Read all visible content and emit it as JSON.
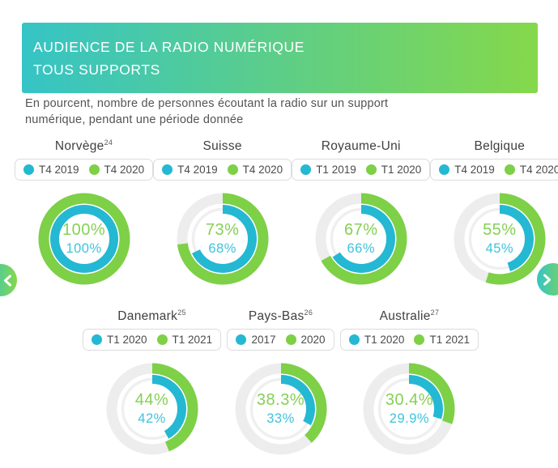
{
  "header": {
    "title_line1": "AUDIENCE DE LA RADIO NUMÉRIQUE",
    "title_line2": "TOUS SUPPORTS",
    "subtitle_line1": "En pourcent, nombre de personnes écoutant la radio sur un support",
    "subtitle_line2": "numérique, pendant une période donnée"
  },
  "colors": {
    "teal": "#24b8d3",
    "green": "#7ed047",
    "teal_text": "#3ec3dc",
    "green_text": "#86d055",
    "track_outer": "#ededed",
    "track_inner": "#efefef",
    "header_gradient_start": "#35c4c6",
    "header_gradient_end": "#85d84a"
  },
  "nav": {
    "prev_icon": "chevron-left",
    "next_icon": "chevron-right"
  },
  "chart_data": {
    "type": "donut",
    "title": "AUDIENCE DE LA RADIO NUMÉRIQUE TOUS SUPPORTS",
    "subtitle": "En pourcent, nombre de personnes écoutant la radio sur un support numérique, pendant une période donnée",
    "unit": "percent",
    "layout": "outer ring = newer period (green), inner ring = older period (teal), arcs start at 12 o'clock clockwise",
    "charts": [
      {
        "country": "Norvège",
        "footnote": "24",
        "series": [
          {
            "label": "T4 2019",
            "value": 100,
            "display": "100%",
            "color_key": "teal"
          },
          {
            "label": "T4 2020",
            "value": 100,
            "display": "100%",
            "color_key": "green"
          }
        ]
      },
      {
        "country": "Suisse",
        "footnote": "",
        "series": [
          {
            "label": "T4 2019",
            "value": 68,
            "display": "68%",
            "color_key": "teal"
          },
          {
            "label": "T4 2020",
            "value": 73,
            "display": "73%",
            "color_key": "green"
          }
        ]
      },
      {
        "country": "Royaume-Uni",
        "footnote": "",
        "series": [
          {
            "label": "T1 2019",
            "value": 66,
            "display": "66%",
            "color_key": "teal"
          },
          {
            "label": "T1 2020",
            "value": 67,
            "display": "67%",
            "color_key": "green"
          }
        ]
      },
      {
        "country": "Belgique",
        "footnote": "",
        "series": [
          {
            "label": "T4 2019",
            "value": 45,
            "display": "45%",
            "color_key": "teal"
          },
          {
            "label": "T4 2020",
            "value": 55,
            "display": "55%",
            "color_key": "green"
          }
        ]
      },
      {
        "country": "Danemark",
        "footnote": "25",
        "series": [
          {
            "label": "T1 2020",
            "value": 42,
            "display": "42%",
            "color_key": "teal"
          },
          {
            "label": "T1 2021",
            "value": 44,
            "display": "44%",
            "color_key": "green"
          }
        ]
      },
      {
        "country": "Pays-Bas",
        "footnote": "26",
        "series": [
          {
            "label": "2017",
            "value": 33,
            "display": "33%",
            "color_key": "teal"
          },
          {
            "label": "2020",
            "value": 38.3,
            "display": "38.3%",
            "color_key": "green"
          }
        ]
      },
      {
        "country": "Australie",
        "footnote": "27",
        "series": [
          {
            "label": "T1 2020",
            "value": 29.9,
            "display": "29.9%",
            "color_key": "teal"
          },
          {
            "label": "T1 2021",
            "value": 30.4,
            "display": "30.4%",
            "color_key": "green"
          }
        ]
      }
    ]
  }
}
